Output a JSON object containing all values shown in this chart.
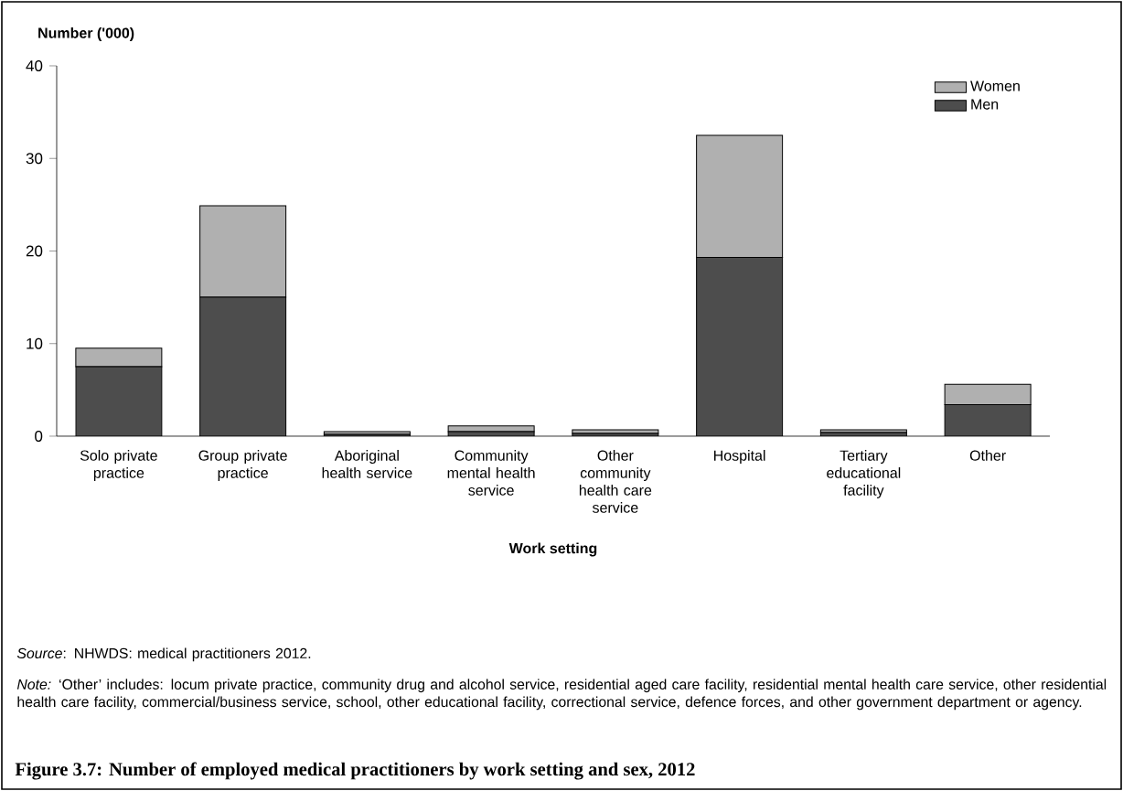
{
  "chart_data": {
    "type": "bar",
    "stacked": true,
    "title": "Figure 3.7: Number of employed medical practitioners by work setting and sex, 2012",
    "xlabel": "Work setting",
    "ylabel": "Number ('000)",
    "categories": [
      "Solo private practice",
      "Group private practice",
      "Aboriginal health service",
      "Community mental health service",
      "Other community health care service",
      "Hospital",
      "Tertiary educational facility",
      "Other"
    ],
    "series": [
      {
        "name": "Men",
        "color": "#4d4d4d",
        "values": [
          7.5,
          15.0,
          0.2,
          0.5,
          0.3,
          19.3,
          0.4,
          3.4
        ]
      },
      {
        "name": "Women",
        "color": "#b0b0b0",
        "values": [
          2.0,
          9.9,
          0.3,
          0.6,
          0.4,
          13.2,
          0.3,
          2.2
        ]
      }
    ],
    "ylim": [
      0,
      40
    ],
    "yticks": [
      0,
      10,
      20,
      30,
      40
    ],
    "legend": "top right",
    "annotations": [
      "*Source*: NHWDS: medical practitioners 2012.",
      "*Note:* ‘Other’ includes: locum private practice, community drug and alcohol service, residential aged care facility, residential mental health care service, other residential health care facility, commercial/business service, school, other educational facility, correctional service, defence forces, and other government department or agency."
    ]
  }
}
